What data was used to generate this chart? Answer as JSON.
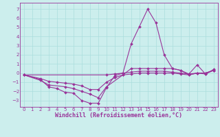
{
  "xlabel": "Windchill (Refroidissement éolien,°C)",
  "xlim": [
    -0.5,
    23.5
  ],
  "ylim": [
    -3.7,
    7.7
  ],
  "xticks": [
    0,
    1,
    2,
    3,
    4,
    5,
    6,
    7,
    8,
    9,
    10,
    11,
    12,
    13,
    14,
    15,
    16,
    17,
    18,
    19,
    20,
    21,
    22,
    23
  ],
  "yticks": [
    -3,
    -2,
    -1,
    0,
    1,
    2,
    3,
    4,
    5,
    6,
    7
  ],
  "bg_color": "#cceeed",
  "grid_color": "#aadddd",
  "line_color": "#993399",
  "series": [
    {
      "x": [
        0,
        2,
        3,
        4,
        5,
        6,
        7,
        8,
        9,
        10,
        11,
        12,
        13,
        14,
        15,
        16,
        17,
        18,
        19,
        20,
        21,
        22,
        23
      ],
      "y": [
        -0.2,
        -0.7,
        -1.5,
        -1.7,
        -2.1,
        -2.2,
        -3.0,
        -3.3,
        -3.3,
        -1.6,
        -0.3,
        0.0,
        3.2,
        5.1,
        7.0,
        5.5,
        2.0,
        0.5,
        0.3,
        -0.1,
        0.9,
        -0.1,
        0.4
      ]
    },
    {
      "x": [
        0,
        2,
        3,
        5,
        6,
        7,
        8,
        9,
        10,
        12,
        13,
        14,
        15,
        16,
        17,
        18,
        19,
        20,
        21,
        22,
        23
      ],
      "y": [
        -0.2,
        -0.8,
        -1.3,
        -1.5,
        -1.7,
        -2.0,
        -2.3,
        -2.7,
        -1.5,
        -0.2,
        0.5,
        0.5,
        0.5,
        0.5,
        0.5,
        0.5,
        0.3,
        -0.2,
        0.0,
        -0.1,
        0.3
      ]
    },
    {
      "x": [
        0,
        2,
        3,
        4,
        5,
        6,
        7,
        8,
        9,
        10,
        11,
        12,
        13,
        14,
        15,
        16,
        17,
        18,
        19,
        20,
        21,
        22,
        23
      ],
      "y": [
        -0.2,
        -0.6,
        -0.9,
        -1.0,
        -1.1,
        -1.2,
        -1.4,
        -1.8,
        -1.8,
        -1.0,
        -0.5,
        -0.2,
        -0.1,
        0.0,
        0.0,
        0.0,
        0.0,
        0.0,
        -0.1,
        -0.2,
        0.0,
        0.0,
        0.3
      ]
    },
    {
      "x": [
        0,
        10,
        11,
        12,
        13,
        14,
        15,
        16,
        17,
        18,
        19,
        20,
        21,
        22,
        23
      ],
      "y": [
        -0.2,
        -0.2,
        -0.1,
        0.0,
        0.1,
        0.2,
        0.2,
        0.2,
        0.2,
        0.1,
        0.0,
        -0.1,
        0.0,
        0.0,
        0.3
      ]
    }
  ],
  "line_width": 0.8,
  "marker": "D",
  "marker_size": 2.0,
  "tick_fontsize": 5.0,
  "xlabel_fontsize": 6.0
}
